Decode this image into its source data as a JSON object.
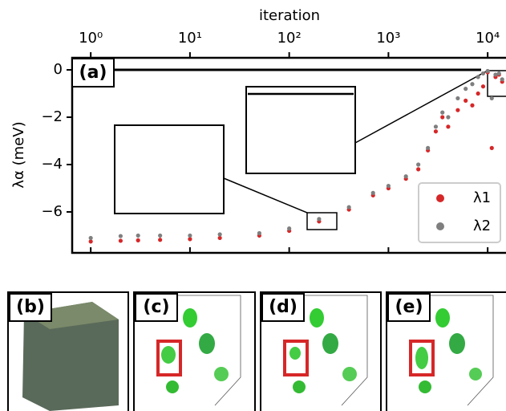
{
  "chart_data": {
    "type": "scatter",
    "xlabel": "iteration",
    "ylabel": "λα (meV)",
    "xscale": "log",
    "xlim": [
      0.65,
      15300
    ],
    "xticks": [
      {
        "value": 1,
        "label": "10⁰"
      },
      {
        "value": 10,
        "label": "10¹"
      },
      {
        "value": 100,
        "label": "10²"
      },
      {
        "value": 1000,
        "label": "10³"
      },
      {
        "value": 10000,
        "label": "10⁴"
      }
    ],
    "ylim": [
      -7.73,
      0.51
    ],
    "yticks": [
      {
        "value": 0,
        "label": "0"
      },
      {
        "value": -2,
        "label": "−2"
      },
      {
        "value": -4,
        "label": "−4"
      },
      {
        "value": -6,
        "label": "−6"
      }
    ],
    "legend": "lower right",
    "x": [
      1,
      2,
      3,
      5,
      10,
      20,
      50,
      100,
      200,
      400,
      700,
      1000,
      1500,
      2000,
      2500,
      3000,
      3500,
      4000,
      5000,
      6000,
      7000,
      8000,
      9000,
      10000,
      11000,
      12000,
      13000,
      14000
    ],
    "series": [
      {
        "name": "λ1",
        "color": "#d62728",
        "values": [
          -7.25,
          -7.22,
          -7.2,
          -7.18,
          -7.15,
          -7.1,
          -7.0,
          -6.8,
          -6.4,
          -5.9,
          -5.3,
          -5.0,
          -4.6,
          -4.2,
          -3.4,
          -2.6,
          -2.0,
          -2.4,
          -1.7,
          -1.3,
          -1.5,
          -1.0,
          -0.7,
          -0.1,
          -3.3,
          -0.3,
          -0.2,
          -0.5
        ]
      },
      {
        "name": "λ2",
        "color": "#7f7f7f",
        "values": [
          -7.1,
          -7.02,
          -7.0,
          -7.0,
          -7.0,
          -6.95,
          -6.9,
          -6.7,
          -6.3,
          -5.8,
          -5.2,
          -4.9,
          -4.5,
          -4.0,
          -3.3,
          -2.4,
          -1.8,
          -2.0,
          -1.2,
          -0.8,
          -0.6,
          -0.3,
          -0.15,
          -0.05,
          -1.2,
          -0.2,
          -0.15,
          -0.4
        ]
      }
    ],
    "panel_labels": [
      "(a)",
      "(b)",
      "(c)",
      "(d)",
      "(e)"
    ]
  }
}
